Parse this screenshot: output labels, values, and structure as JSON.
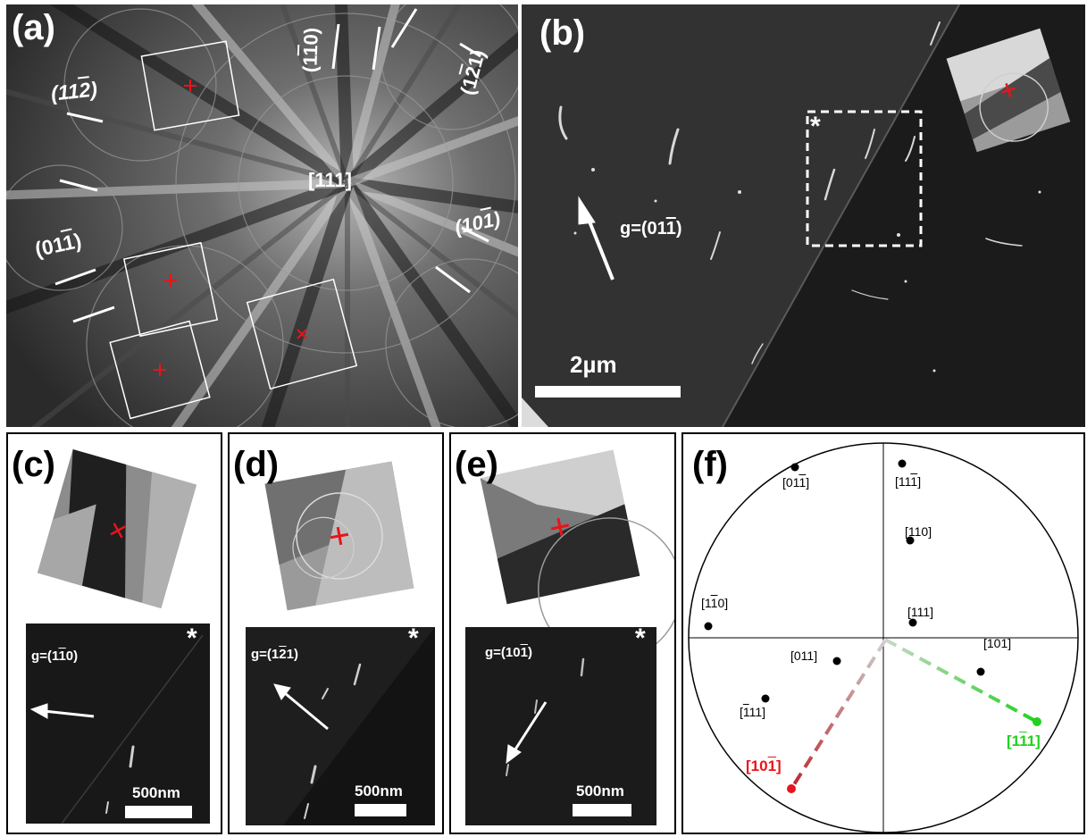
{
  "panels": {
    "a": {
      "label": "(a)",
      "center_label": "[111]",
      "planes": {
        "p112": {
          "prefix": "(11",
          "digit": "2",
          "suffix": ")"
        },
        "p1m10": {
          "prefix": "(1",
          "digit": "1",
          "suffix": "0)"
        },
        "p1m21": {
          "prefix": "(1",
          "digit": "2",
          "suffix": "1)"
        },
        "p01m1": {
          "prefix": "(01",
          "digit": "1",
          "suffix": ")"
        },
        "p10m1": {
          "prefix": "(10",
          "digit": "1",
          "suffix": ")"
        }
      }
    },
    "b": {
      "label": "(b)",
      "g_prefix": "g=(01",
      "g_digit": "1",
      "g_suffix": ")",
      "scale": "2µm",
      "star": "*"
    },
    "c": {
      "label": "(c)",
      "g_prefix": "g=(1",
      "g_digit": "1",
      "g_suffix": "0)",
      "scale": "500nm",
      "star": "*"
    },
    "d": {
      "label": "(d)",
      "g_prefix": "g=(1",
      "g_digit": "2",
      "g_suffix": "1)",
      "scale": "500nm",
      "star": "*"
    },
    "e": {
      "label": "(e)",
      "g_prefix": "g=(10",
      "g_digit": "1",
      "g_suffix": ")",
      "scale": "500nm",
      "star": "*"
    },
    "f": {
      "label": "(f)",
      "poles": [
        {
          "name": "pole-01-1",
          "a": "[01",
          "b": "1",
          "c": "]",
          "bar": true
        },
        {
          "name": "pole-11-1",
          "a": "[11",
          "b": "1",
          "c": "]",
          "bar": true
        },
        {
          "name": "pole-110",
          "a": "[110]",
          "b": "",
          "c": "",
          "bar": false
        },
        {
          "name": "pole-1-10",
          "a": "[1",
          "b": "1",
          "c": "0]",
          "bar": true
        },
        {
          "name": "pole-111",
          "a": "[111]",
          "b": "",
          "c": "",
          "bar": false
        },
        {
          "name": "pole-011",
          "a": "[011]",
          "b": "",
          "c": "",
          "bar": false
        },
        {
          "name": "pole-101",
          "a": "[101]",
          "b": "",
          "c": "",
          "bar": false
        },
        {
          "name": "pole-m111",
          "a": "[",
          "b": "1",
          "c": "11]",
          "bar": true
        }
      ],
      "dir_red": {
        "a": "[10",
        "b": "1",
        "c": "]",
        "color": "#e8141b"
      },
      "dir_green": {
        "a": "[1",
        "b": "1",
        "c": "1]",
        "color": "#22d11f"
      }
    }
  }
}
